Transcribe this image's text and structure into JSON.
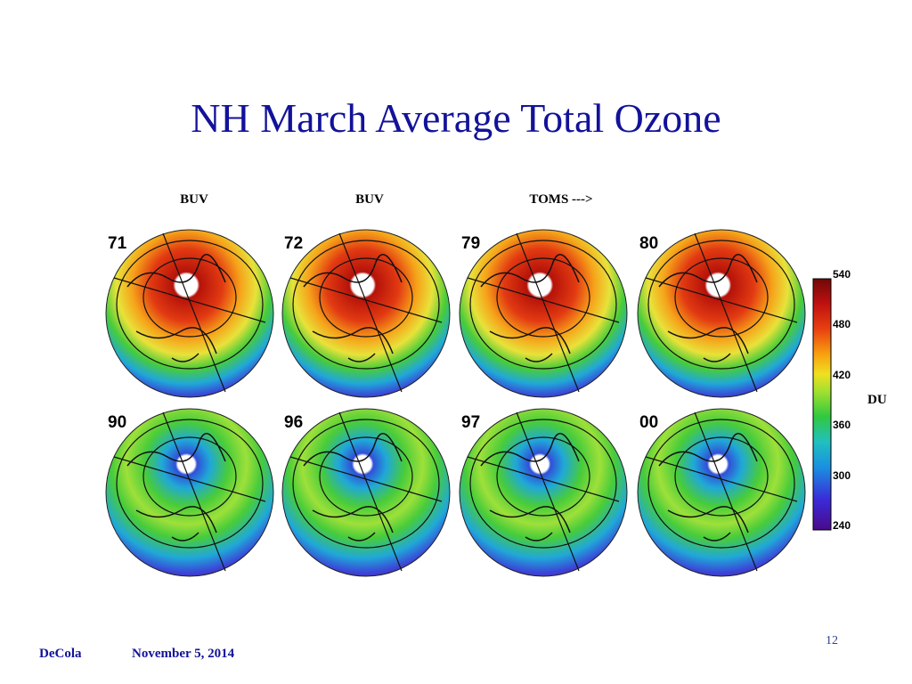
{
  "title": "NH March Average Total Ozone",
  "column_labels": [
    "BUV",
    "BUV",
    "TOMS --->"
  ],
  "maps": [
    [
      "71",
      "72",
      "79",
      "80"
    ],
    [
      "90",
      "96",
      "97",
      "00"
    ]
  ],
  "colorbar": {
    "ticks": [
      "540",
      "480",
      "420",
      "360",
      "300",
      "240"
    ],
    "unit": "DU"
  },
  "footer": {
    "author": "DeCola",
    "date": "November 5, 2014",
    "page": "12"
  }
}
